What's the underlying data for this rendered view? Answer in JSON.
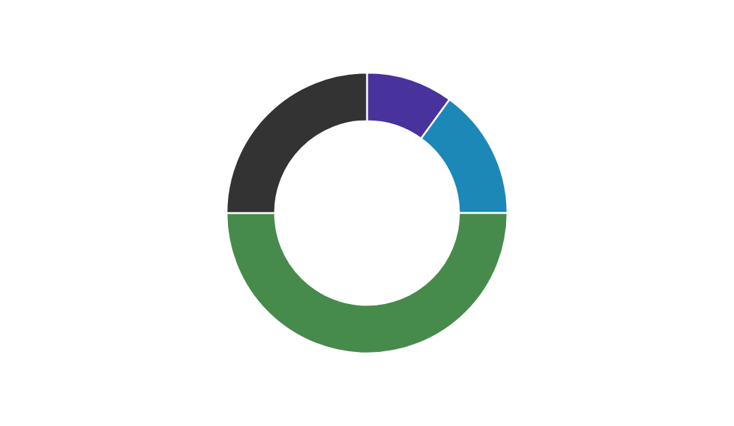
{
  "chart_data": {
    "type": "donut",
    "categories": [
      null,
      null,
      null,
      null
    ],
    "values": [
      10,
      15,
      50,
      25
    ],
    "colors": [
      "#48339c",
      "#1b88b8",
      "#478b4c",
      "#333333"
    ]
  }
}
